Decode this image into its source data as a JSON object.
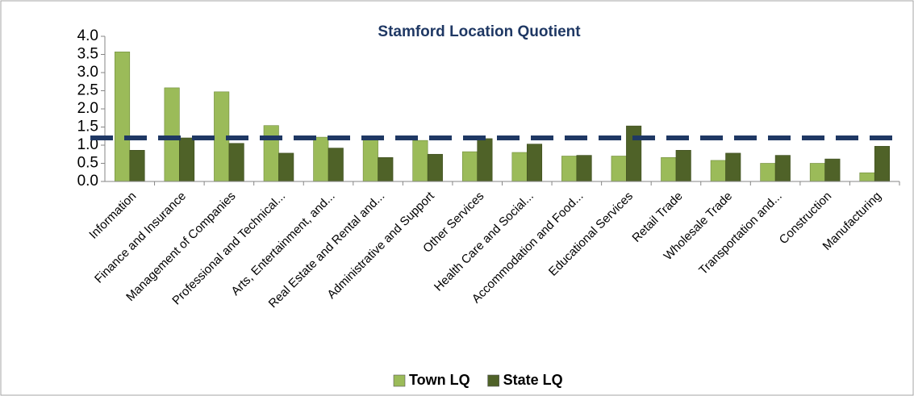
{
  "chart_data": {
    "type": "bar",
    "title": "Stamford Location Quotient",
    "categories": [
      "Information",
      "Finance and Insurance",
      "Management of Companies",
      "Professional and Technical...",
      "Arts, Entertainment, and...",
      "Real Estate and Rental and...",
      "Administrative and Support",
      "Other Services",
      "Health Care and Social...",
      "Accommodation and Food...",
      "Educational Services",
      "Retail Trade",
      "Wholesale Trade",
      "Transportation and...",
      "Construction",
      "Manufacturing"
    ],
    "series": [
      {
        "name": "Town LQ",
        "color": "#9bbb59",
        "values": [
          3.57,
          2.58,
          2.47,
          1.54,
          1.22,
          1.14,
          1.13,
          0.82,
          0.8,
          0.7,
          0.7,
          0.66,
          0.58,
          0.5,
          0.5,
          0.24
        ]
      },
      {
        "name": "State LQ",
        "color": "#4f6228",
        "values": [
          0.86,
          1.2,
          1.05,
          0.78,
          0.92,
          0.66,
          0.75,
          1.18,
          1.03,
          0.72,
          1.53,
          0.86,
          0.78,
          0.72,
          0.62,
          0.97
        ]
      }
    ],
    "reference_line": {
      "value": 1.2,
      "color": "#1f3864"
    },
    "ylim": [
      0,
      4
    ],
    "yticks": [
      {
        "value": 0,
        "label": "0.0"
      },
      0.5,
      {
        "value": 1,
        "label": "1.0"
      },
      1.5,
      {
        "value": 2,
        "label": "2.0"
      },
      2.5,
      {
        "value": 3,
        "label": "3.0"
      },
      3.5,
      {
        "value": 4,
        "label": "4.0"
      }
    ],
    "legend": "bottom"
  }
}
